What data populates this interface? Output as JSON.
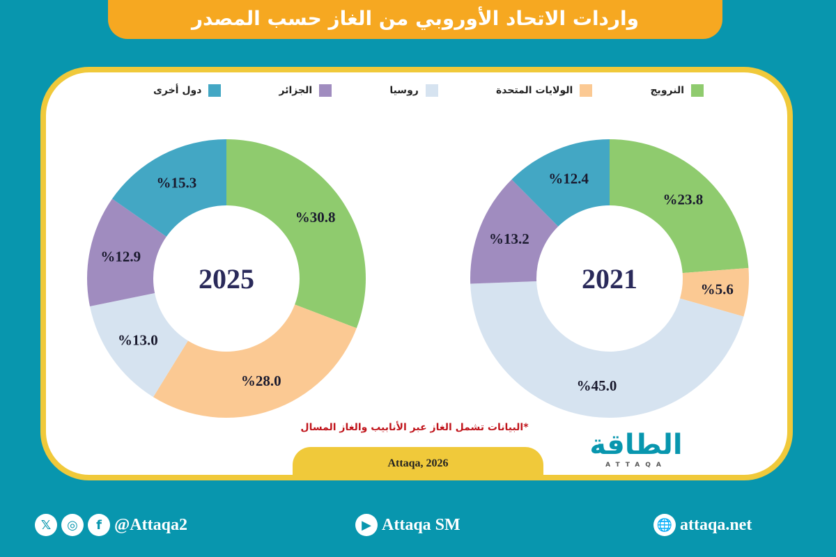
{
  "title": "واردات الاتحاد الأوروبي من الغاز حسب المصدر",
  "legend": [
    {
      "label": "النرويج",
      "color": "#8fcb6e"
    },
    {
      "label": "الولايات المتحدة",
      "color": "#fbc993"
    },
    {
      "label": "روسيا",
      "color": "#d6e3f0"
    },
    {
      "label": "الجزائر",
      "color": "#a08cbf"
    },
    {
      "label": "دول أخرى",
      "color": "#43a7c4"
    }
  ],
  "chart_data": [
    {
      "type": "pie",
      "title": "2025",
      "categories": [
        "النرويج",
        "الولايات المتحدة",
        "روسيا",
        "الجزائر",
        "دول أخرى"
      ],
      "values": [
        30.8,
        28.0,
        13.0,
        12.9,
        15.3
      ],
      "labels": [
        "%30.8",
        "%28.0",
        "%13.0",
        "%12.9",
        "%15.3"
      ]
    },
    {
      "type": "pie",
      "title": "2021",
      "categories": [
        "النرويج",
        "الولايات المتحدة",
        "روسيا",
        "الجزائر",
        "دول أخرى"
      ],
      "values": [
        23.8,
        5.6,
        45.0,
        13.2,
        12.4
      ],
      "labels": [
        "%23.8",
        "%5.6",
        "%45.0",
        "%13.2",
        "%12.4"
      ]
    }
  ],
  "note": "*البيانات تشمل الغاز عبر الأنابيب والغاز المسال",
  "source": "Attaqa, 2026",
  "logo": {
    "ar": "الطاقة",
    "en": "ATTAQA"
  },
  "footer": {
    "social": "@Attaqa2",
    "youtube": "Attaqa SM",
    "web": "attaqa.net"
  }
}
